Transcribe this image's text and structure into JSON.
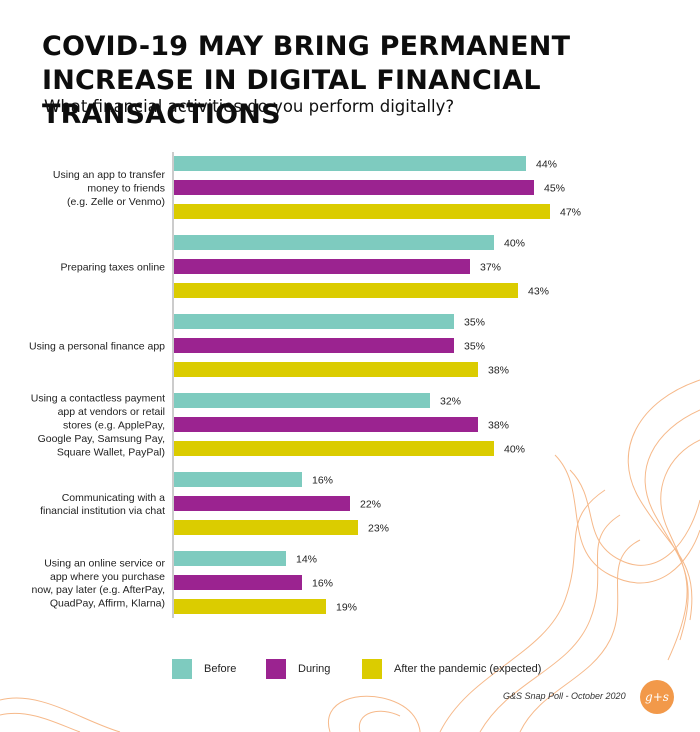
{
  "header": {
    "title": "COVID-19 MAY BRING PERMANENT INCREASE IN DIGITAL FINANCIAL TRANSACTIONS",
    "subtitle": "What financial activities do you perform digitally?"
  },
  "footer": {
    "credit": "G&S Snap Poll - October 2020",
    "logo_text": "g+s"
  },
  "colors": {
    "before": "#7ecbbf",
    "during": "#9b2390",
    "after": "#dbcc00",
    "axis": "#999999",
    "background_lines": "#f6b98a"
  },
  "chart_data": {
    "type": "bar",
    "orientation": "horizontal",
    "title": "What financial activities do you perform digitally?",
    "unit": "%",
    "categories": [
      [
        "Using an app to transfer",
        "money to friends",
        "(e.g. Zelle or Venmo)"
      ],
      [
        "Preparing taxes online"
      ],
      [
        "Using a personal finance app"
      ],
      [
        "Using a contactless payment",
        "app at vendors or retail",
        "stores (e.g. ApplePay,",
        "Google Pay, Samsung Pay,",
        "Square Wallet, PayPal)"
      ],
      [
        "Communicating with a",
        "financial institution via chat"
      ],
      [
        "Using an online service or",
        "app where you purchase",
        "now, pay later (e.g. AfterPay,",
        "QuadPay, Affirm, Klarna)"
      ]
    ],
    "series": [
      {
        "name": "Before",
        "key": "before",
        "values": [
          44,
          40,
          35,
          32,
          16,
          14
        ]
      },
      {
        "name": "During",
        "key": "during",
        "values": [
          45,
          37,
          35,
          38,
          22,
          16
        ]
      },
      {
        "name": "After the pandemic (expected)",
        "key": "after",
        "values": [
          47,
          43,
          38,
          40,
          23,
          19
        ]
      }
    ],
    "xlim": [
      0,
      50
    ],
    "legend_position": "bottom"
  }
}
